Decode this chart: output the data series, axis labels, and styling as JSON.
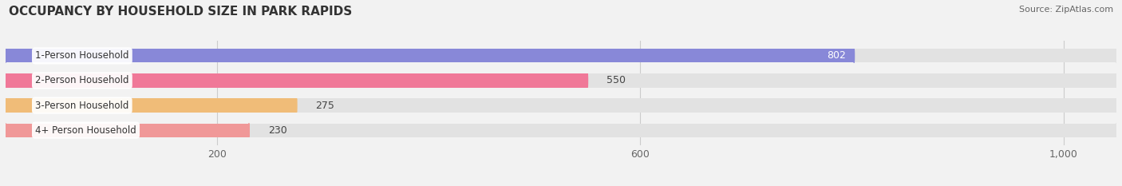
{
  "title": "OCCUPANCY BY HOUSEHOLD SIZE IN PARK RAPIDS",
  "source": "Source: ZipAtlas.com",
  "categories": [
    "1-Person Household",
    "2-Person Household",
    "3-Person Household",
    "4+ Person Household"
  ],
  "values": [
    802,
    550,
    275,
    230
  ],
  "bar_colors": [
    "#8888d8",
    "#f07898",
    "#f0bc78",
    "#f09898"
  ],
  "xlim_max": 1050,
  "xticks": [
    200,
    600,
    1000
  ],
  "xtick_labels": [
    "200",
    "600",
    "1,000"
  ],
  "bg_color": "#f2f2f2",
  "bar_bg_color": "#e2e2e2",
  "title_fontsize": 11,
  "tick_fontsize": 9,
  "bar_height": 0.55,
  "value_white_threshold": 700
}
